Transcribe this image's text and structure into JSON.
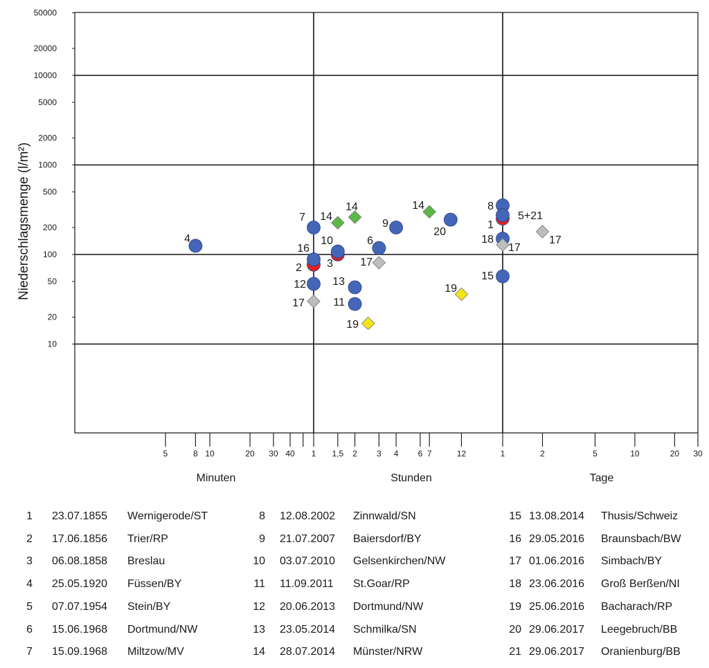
{
  "chart_data": {
    "type": "scatter",
    "ylabel": "Niederschlagsmenge (l/m²)",
    "x_unit": "minutes",
    "y_scale": "log",
    "ylim": [
      1,
      50000
    ],
    "y_ticks": [
      50000,
      20000,
      10000,
      5000,
      2000,
      1000,
      500,
      200,
      100,
      50,
      20,
      10
    ],
    "y_gridlines": [
      10,
      100,
      1000,
      10000
    ],
    "x_gridlines": [
      60,
      1440
    ],
    "x_groups": [
      {
        "label": "Minuten"
      },
      {
        "label": "Stunden"
      },
      {
        "label": "Tage"
      }
    ],
    "x_ticks": [
      {
        "value": 5,
        "label": "5"
      },
      {
        "value": 8,
        "label": "8"
      },
      {
        "value": 10,
        "label": "10"
      },
      {
        "value": 20,
        "label": "20"
      },
      {
        "value": 30,
        "label": "30"
      },
      {
        "value": 40,
        "label": "40"
      },
      {
        "value": 50,
        "label": ""
      },
      {
        "value": 60,
        "label": "1"
      },
      {
        "value": 90,
        "label": "1,5"
      },
      {
        "value": 120,
        "label": "2"
      },
      {
        "value": 180,
        "label": "3"
      },
      {
        "value": 240,
        "label": "4"
      },
      {
        "value": 360,
        "label": "6"
      },
      {
        "value": 420,
        "label": "7"
      },
      {
        "value": 720,
        "label": "12"
      },
      {
        "value": 1440,
        "label": "1"
      },
      {
        "value": 2880,
        "label": "2"
      },
      {
        "value": 7200,
        "label": "5"
      },
      {
        "value": 14400,
        "label": "10"
      },
      {
        "value": 28800,
        "label": "20"
      },
      {
        "value": 43200,
        "label": "30"
      }
    ],
    "series_colors": {
      "blue": "#4466b8",
      "red": "#e02020",
      "green": "#5cb846",
      "gray": "#bdbdbd",
      "yellow": "#f2e614"
    },
    "points": [
      {
        "label": "4",
        "x": 8,
        "y": 125,
        "series": "blue",
        "shape": "circle"
      },
      {
        "label": "7",
        "x": 60,
        "y": 200,
        "series": "blue",
        "shape": "circle"
      },
      {
        "label": "2",
        "x": 60,
        "y": 77,
        "series": "red",
        "shape": "circle"
      },
      {
        "label": "16",
        "x": 60,
        "y": 88,
        "series": "blue",
        "shape": "circle"
      },
      {
        "label": "12",
        "x": 60,
        "y": 47,
        "series": "blue",
        "shape": "circle"
      },
      {
        "label": "17",
        "x": 60,
        "y": 30,
        "series": "gray",
        "shape": "diamond"
      },
      {
        "label": "3",
        "x": 90,
        "y": 100,
        "series": "red",
        "shape": "circle"
      },
      {
        "label": "10",
        "x": 90,
        "y": 108,
        "series": "blue",
        "shape": "circle"
      },
      {
        "label": "14",
        "x": 90,
        "y": 226,
        "series": "green",
        "shape": "diamond"
      },
      {
        "label": "14",
        "x": 120,
        "y": 261,
        "series": "green",
        "shape": "diamond"
      },
      {
        "label": "13",
        "x": 120,
        "y": 43,
        "series": "blue",
        "shape": "circle"
      },
      {
        "label": "11",
        "x": 120,
        "y": 28,
        "series": "blue",
        "shape": "circle"
      },
      {
        "label": "19",
        "x": 150,
        "y": 17,
        "series": "yellow",
        "shape": "diamond"
      },
      {
        "label": "6",
        "x": 180,
        "y": 118,
        "series": "blue",
        "shape": "circle"
      },
      {
        "label": "17",
        "x": 180,
        "y": 81,
        "series": "gray",
        "shape": "diamond"
      },
      {
        "label": "9",
        "x": 240,
        "y": 200,
        "series": "blue",
        "shape": "circle"
      },
      {
        "label": "14",
        "x": 420,
        "y": 300,
        "series": "green",
        "shape": "diamond"
      },
      {
        "label": "20",
        "x": 600,
        "y": 245,
        "series": "blue",
        "shape": "circle"
      },
      {
        "label": "19",
        "x": 720,
        "y": 36,
        "series": "yellow",
        "shape": "diamond"
      },
      {
        "label": "1",
        "x": 1440,
        "y": 252,
        "series": "red",
        "shape": "circle"
      },
      {
        "label": "8",
        "x": 1440,
        "y": 353,
        "series": "blue",
        "shape": "circle"
      },
      {
        "label": "5+21",
        "x": 1440,
        "y": 275,
        "series": "blue",
        "shape": "circle"
      },
      {
        "label": "18",
        "x": 1440,
        "y": 150,
        "series": "blue",
        "shape": "circle"
      },
      {
        "label": "17",
        "x": 1440,
        "y": 128,
        "series": "gray",
        "shape": "diamond"
      },
      {
        "label": "15",
        "x": 1440,
        "y": 57,
        "series": "blue",
        "shape": "circle"
      },
      {
        "label": "17",
        "x": 2880,
        "y": 180,
        "series": "gray",
        "shape": "diamond"
      }
    ]
  },
  "legend": [
    {
      "num": "1",
      "date": "23.07.1855",
      "place": "Wernigerode/ST"
    },
    {
      "num": "2",
      "date": "17.06.1856",
      "place": "Trier/RP"
    },
    {
      "num": "3",
      "date": "06.08.1858",
      "place": "Breslau"
    },
    {
      "num": "4",
      "date": "25.05.1920",
      "place": "Füssen/BY"
    },
    {
      "num": "5",
      "date": "07.07.1954",
      "place": "Stein/BY"
    },
    {
      "num": "6",
      "date": "15.06.1968",
      "place": "Dortmund/NW"
    },
    {
      "num": "7",
      "date": "15.09.1968",
      "place": "Miltzow/MV"
    },
    {
      "num": "8",
      "date": "12.08.2002",
      "place": "Zinnwald/SN"
    },
    {
      "num": "9",
      "date": "21.07.2007",
      "place": "Baiersdorf/BY"
    },
    {
      "num": "10",
      "date": "03.07.2010",
      "place": "Gelsenkirchen/NW"
    },
    {
      "num": "11",
      "date": "11.09.2011",
      "place": "St.Goar/RP"
    },
    {
      "num": "12",
      "date": "20.06.2013",
      "place": "Dortmund/NW"
    },
    {
      "num": "13",
      "date": "23.05.2014",
      "place": "Schmilka/SN"
    },
    {
      "num": "14",
      "date": "28.07.2014",
      "place": "Münster/NRW"
    },
    {
      "num": "15",
      "date": "13.08.2014",
      "place": "Thusis/Schweiz"
    },
    {
      "num": "16",
      "date": "29.05.2016",
      "place": "Braunsbach/BW"
    },
    {
      "num": "17",
      "date": "01.06.2016",
      "place": "Simbach/BY"
    },
    {
      "num": "18",
      "date": "23.06.2016",
      "place": "Groß Berßen/NI"
    },
    {
      "num": "19",
      "date": "25.06.2016",
      "place": "Bacharach/RP"
    },
    {
      "num": "20",
      "date": "29.06.2017",
      "place": "Leegebruch/BB"
    },
    {
      "num": "21",
      "date": "29.06.2017",
      "place": "Oranienburg/BB"
    }
  ]
}
